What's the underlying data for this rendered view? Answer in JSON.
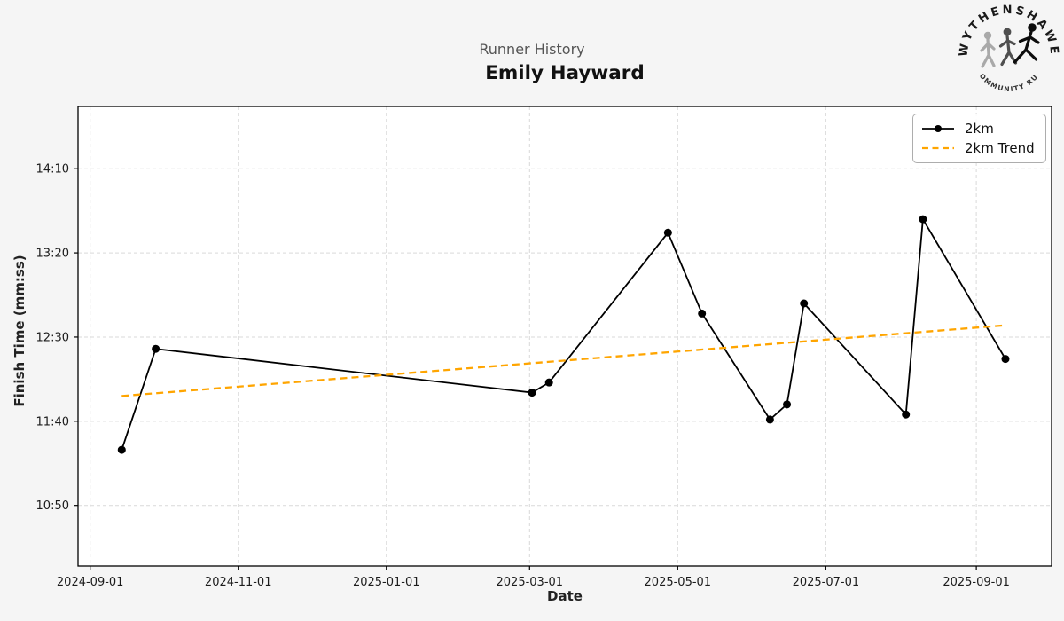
{
  "header": {
    "pretitle": "Runner History",
    "title": "Emily Hayward"
  },
  "logo": {
    "top_text": "WYTHENSHAWE",
    "bottom_text": "COMMUNITY RUN"
  },
  "chart_data": {
    "type": "line",
    "title": "Runner History",
    "subtitle": "Emily Hayward",
    "xlabel": "Date",
    "ylabel": "Finish Time (mm:ss)",
    "grid": true,
    "legend_position": "top-right",
    "xlim": [
      "2024-08-27",
      "2025-10-02"
    ],
    "ylim_seconds": [
      614,
      887
    ],
    "x_ticks": [
      "2024-09-01",
      "2024-11-01",
      "2025-01-01",
      "2025-03-01",
      "2025-05-01",
      "2025-07-01",
      "2025-09-01"
    ],
    "y_ticks": [
      {
        "seconds": 650,
        "label": "10:50"
      },
      {
        "seconds": 700,
        "label": "11:40"
      },
      {
        "seconds": 750,
        "label": "12:30"
      },
      {
        "seconds": 800,
        "label": "13:20"
      },
      {
        "seconds": 850,
        "label": "14:10"
      }
    ],
    "series": [
      {
        "name": "2km",
        "type": "line-markers",
        "color": "#000000",
        "points": [
          {
            "date": "2024-09-14",
            "time": "11:23",
            "seconds": 683
          },
          {
            "date": "2024-09-28",
            "time": "12:23",
            "seconds": 743
          },
          {
            "date": "2025-03-02",
            "time": "11:57",
            "seconds": 717
          },
          {
            "date": "2025-03-09",
            "time": "12:03",
            "seconds": 723
          },
          {
            "date": "2025-04-27",
            "time": "13:32",
            "seconds": 812
          },
          {
            "date": "2025-05-11",
            "time": "12:44",
            "seconds": 764
          },
          {
            "date": "2025-06-08",
            "time": "11:41",
            "seconds": 701
          },
          {
            "date": "2025-06-15",
            "time": "11:50",
            "seconds": 710
          },
          {
            "date": "2025-06-22",
            "time": "12:50",
            "seconds": 770
          },
          {
            "date": "2025-08-03",
            "time": "11:44",
            "seconds": 704
          },
          {
            "date": "2025-08-10",
            "time": "13:40",
            "seconds": 820
          },
          {
            "date": "2025-09-13",
            "time": "12:17",
            "seconds": 737
          }
        ]
      },
      {
        "name": "2km Trend",
        "type": "dashed-line",
        "color": "#FFA500",
        "points": [
          {
            "date": "2024-09-14",
            "time": "11:55",
            "seconds": 715
          },
          {
            "date": "2025-09-13",
            "time": "12:37",
            "seconds": 757
          }
        ]
      }
    ]
  }
}
